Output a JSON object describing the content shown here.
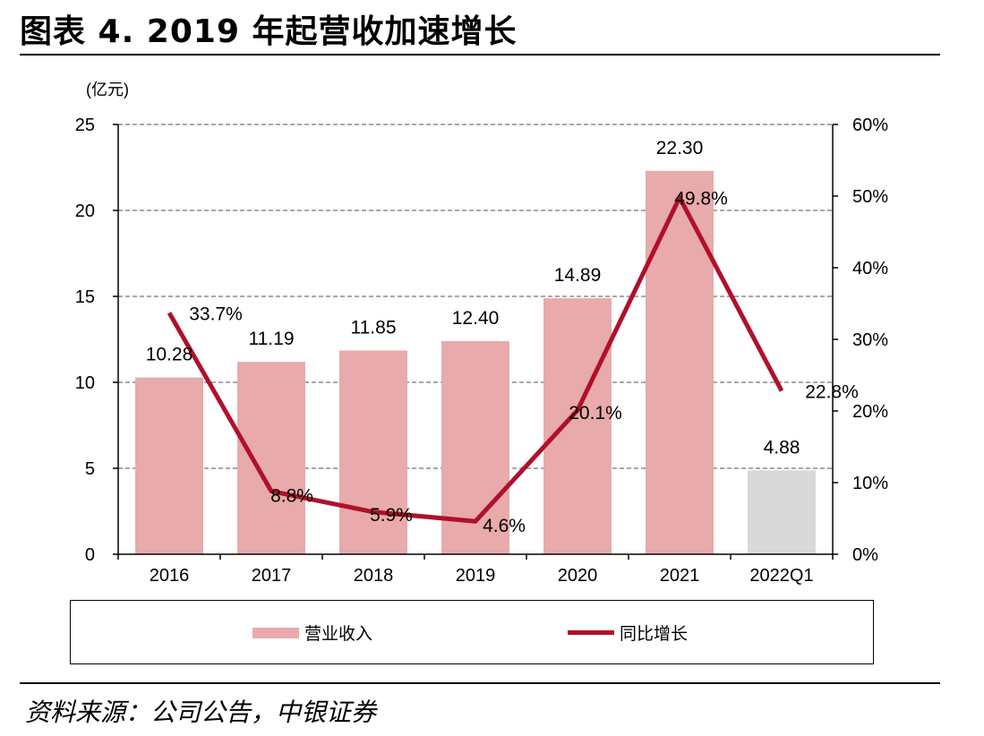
{
  "figure_title": "图表 4. 2019 年起营收加速增长",
  "source": "资料来源：公司公告，中银证券",
  "chart_data": {
    "type": "bar",
    "categories": [
      "2016",
      "2017",
      "2018",
      "2019",
      "2020",
      "2021",
      "2022Q1"
    ],
    "series": [
      {
        "name": "营业收入",
        "type": "bar",
        "axis": "left",
        "values": [
          10.28,
          11.19,
          11.85,
          12.4,
          14.89,
          22.3,
          4.88
        ],
        "value_labels": [
          "10.28",
          "11.19",
          "11.85",
          "12.40",
          "14.89",
          "22.30",
          "4.88"
        ],
        "color": "#e8aaaa",
        "highlight_color": "#d9d9d9"
      },
      {
        "name": "同比增长",
        "type": "line",
        "axis": "right",
        "values": [
          33.7,
          8.8,
          5.9,
          4.6,
          20.1,
          49.8,
          22.8
        ],
        "value_labels": [
          "33.7%",
          "8.8%",
          "5.9%",
          "4.6%",
          "20.1%",
          "49.8%",
          "22.8%"
        ],
        "color": "#b0102a"
      }
    ],
    "y_left": {
      "unit_label": "(亿元)",
      "ylim": [
        0,
        25
      ],
      "ticks": [
        0,
        5,
        10,
        15,
        20,
        25
      ],
      "tick_labels": [
        "0",
        "5",
        "10",
        "15",
        "20",
        "25"
      ]
    },
    "y_right": {
      "ylim": [
        0,
        60
      ],
      "ticks": [
        0,
        10,
        20,
        30,
        40,
        50,
        60
      ],
      "tick_labels": [
        "0%",
        "10%",
        "20%",
        "30%",
        "40%",
        "50%",
        "60%"
      ]
    },
    "grid": "horizontal-dashed",
    "legend": {
      "position": "bottom",
      "items": [
        "营业收入",
        "同比增长"
      ]
    }
  }
}
